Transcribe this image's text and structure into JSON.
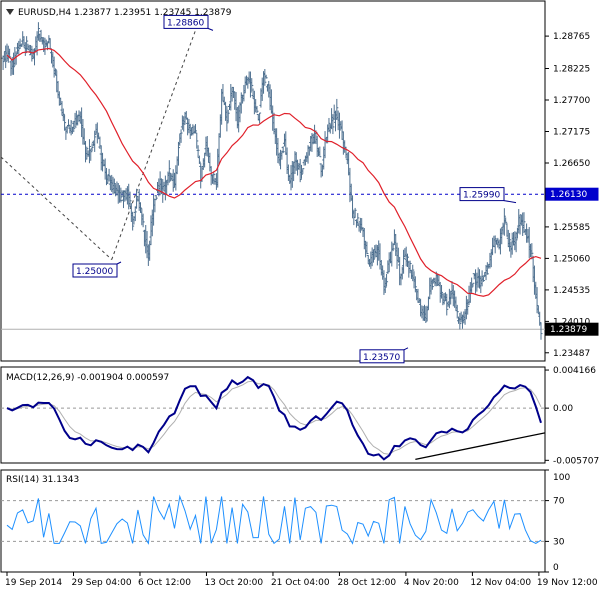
{
  "header": {
    "main_title": "EURUSD,H4  1.23877 1.23951 1.23745 1.23879",
    "macd_title": "MACD(12,26,9) -0.001904 0.000597",
    "rsi_title": "RSI(14) 31.1343"
  },
  "chart_data": [
    {
      "type": "candlestick",
      "title": "EURUSD,H4",
      "ylim": [
        1.2335,
        1.2935
      ],
      "y_ticks": [
        "1.28765",
        "1.28225",
        "1.27700",
        "1.27175",
        "1.26650",
        "1.26130",
        "1.25585",
        "1.25060",
        "1.24535",
        "1.24010",
        "1.23487"
      ],
      "x_ticks": [
        "19 Sep 2014",
        "29 Sep 04:00",
        "6 Oct 12:00",
        "13 Oct 20:00",
        "21 Oct 04:00",
        "28 Oct 12:00",
        "4 Nov 20:00",
        "12 Nov 04:00",
        "19 Nov 12:00"
      ],
      "annotations": [
        {
          "text": "1.28860",
          "x_bar": 210,
          "y": 1.2886
        },
        {
          "text": "1.25000",
          "x_bar": 118,
          "y": 1.25
        },
        {
          "text": "1.25990",
          "x_bar": 513,
          "y": 1.2599
        },
        {
          "text": "1.23570",
          "x_bar": 405,
          "y": 1.2357
        }
      ],
      "horizontal_lines": [
        {
          "value": 1.2613,
          "label": "1.26130",
          "style": "dashed",
          "color": "#0000cc"
        }
      ],
      "current_price": "1.23879",
      "closes": [
        1.2845,
        1.2828,
        1.2857,
        1.2866,
        1.2856,
        1.2838,
        1.2885,
        1.2862,
        1.2865,
        1.2824,
        1.2767,
        1.2727,
        1.2719,
        1.2733,
        1.2741,
        1.2678,
        1.2684,
        1.2718,
        1.2673,
        1.2642,
        1.2629,
        1.2617,
        1.2609,
        1.2618,
        1.2567,
        1.2612,
        1.2556,
        1.2516,
        1.2598,
        1.2629,
        1.2622,
        1.2648,
        1.263,
        1.2714,
        1.2744,
        1.2715,
        1.2709,
        1.2643,
        1.2695,
        1.2647,
        1.2632,
        1.2779,
        1.2741,
        1.2794,
        1.2734,
        1.2779,
        1.281,
        1.2775,
        1.2739,
        1.281,
        1.2786,
        1.2717,
        1.2668,
        1.27,
        1.2627,
        1.2675,
        1.2646,
        1.2672,
        1.2706,
        1.2705,
        1.2654,
        1.2711,
        1.2732,
        1.2747,
        1.2709,
        1.2664,
        1.2585,
        1.2566,
        1.2546,
        1.2495,
        1.2515,
        1.2518,
        1.2459,
        1.2497,
        1.2536,
        1.2477,
        1.2511,
        1.2491,
        1.2461,
        1.2416,
        1.2412,
        1.2466,
        1.2474,
        1.2447,
        1.2425,
        1.2451,
        1.2408,
        1.2403,
        1.2427,
        1.2474,
        1.2467,
        1.2471,
        1.2494,
        1.2532,
        1.2534,
        1.2567,
        1.2526,
        1.2538,
        1.2573,
        1.2552,
        1.2525,
        1.2445,
        1.2388
      ]
    },
    {
      "type": "line",
      "title": "MACD(12,26,9)",
      "series": [
        {
          "name": "MACD"
        },
        {
          "name": "Signal"
        }
      ],
      "values_text": [
        "-0.001904",
        "0.000597"
      ],
      "y_ticks": [
        "0.004166",
        "0.00",
        "-0.005707"
      ],
      "ylim": [
        -0.006,
        0.0045
      ]
    },
    {
      "type": "line",
      "title": "RSI(14)",
      "value_text": "31.1343",
      "y_ticks": [
        "100",
        "70",
        "30",
        "0"
      ],
      "ylim": [
        0,
        100
      ]
    }
  ]
}
